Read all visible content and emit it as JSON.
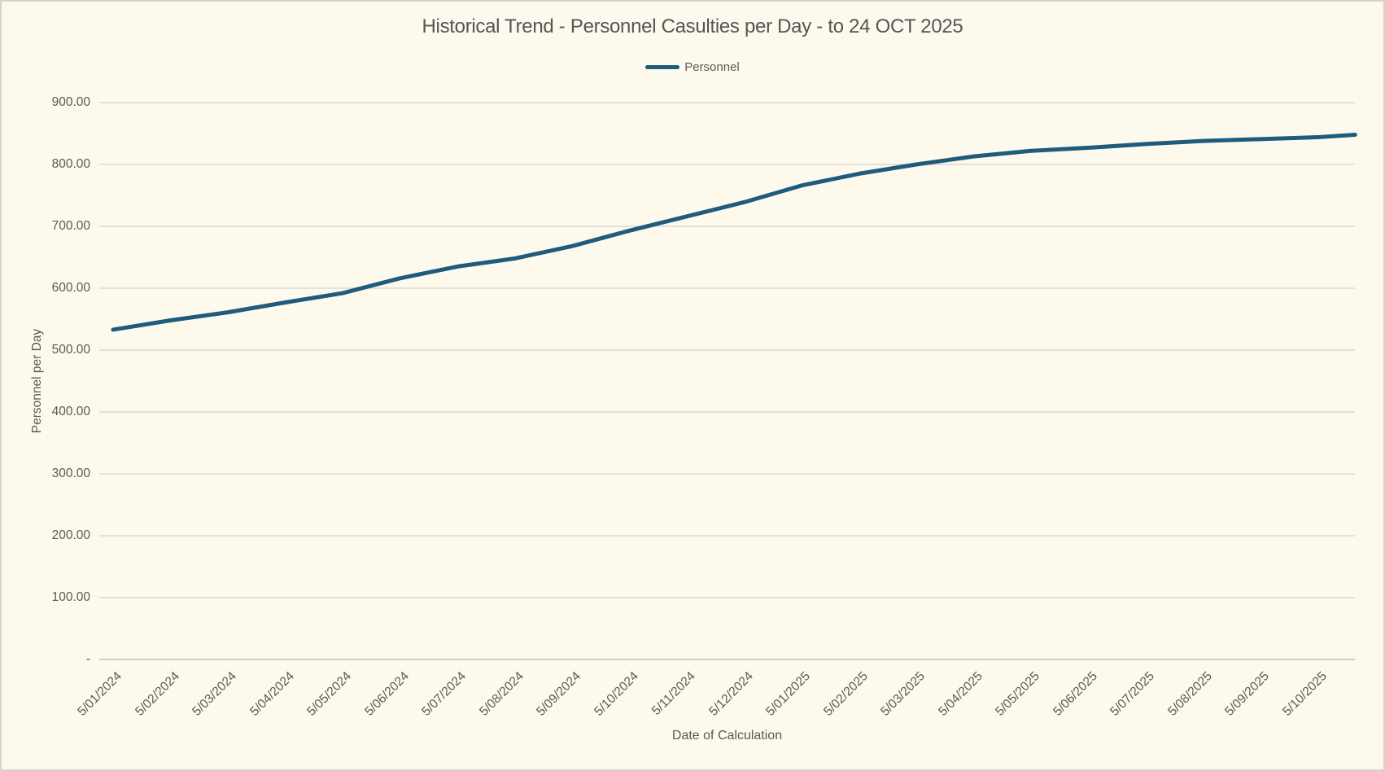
{
  "window": {
    "background": "#FDF9EC",
    "border_color": "#D6D3CB"
  },
  "chart_data": {
    "type": "line",
    "title": "Historical Trend - Personnel Casulties per Day - to 24 OCT 2025",
    "xlabel": "Date of Calculation",
    "ylabel": "Personnel per Day",
    "ylim": [
      0,
      900
    ],
    "ytick_step": 100,
    "ytick_labels": [
      "-",
      "100.00",
      "200.00",
      "300.00",
      "400.00",
      "500.00",
      "600.00",
      "700.00",
      "800.00",
      "900.00"
    ],
    "categories": [
      "5/01/2024",
      "5/02/2024",
      "5/03/2024",
      "5/04/2024",
      "5/05/2024",
      "5/06/2024",
      "5/07/2024",
      "5/08/2024",
      "5/09/2024",
      "5/10/2024",
      "5/11/2024",
      "5/12/2024",
      "5/01/2025",
      "5/02/2025",
      "5/03/2025",
      "5/04/2025",
      "5/05/2025",
      "5/06/2025",
      "5/07/2025",
      "5/08/2025",
      "5/09/2025",
      "5/10/2025"
    ],
    "grid": true,
    "legend_position": "top-center",
    "colors": {
      "gridline": "#D9D9D9",
      "axis_line": "#BFBFBF",
      "text": "#595959",
      "series": "#1F5B7B"
    },
    "series": [
      {
        "name": "Personnel",
        "color": "#1F5B7B",
        "points": [
          [
            0,
            533
          ],
          [
            1,
            548
          ],
          [
            2,
            561
          ],
          [
            3,
            577
          ],
          [
            4,
            592
          ],
          [
            5,
            616
          ],
          [
            6,
            635
          ],
          [
            7,
            648
          ],
          [
            8,
            668
          ],
          [
            9,
            693
          ],
          [
            10,
            716
          ],
          [
            11,
            739
          ],
          [
            12,
            766
          ],
          [
            13,
            785
          ],
          [
            14,
            800
          ],
          [
            15,
            813
          ],
          [
            16,
            822
          ],
          [
            17,
            827
          ],
          [
            18,
            833
          ],
          [
            19,
            838
          ],
          [
            20,
            841
          ],
          [
            21,
            844
          ],
          [
            21.65,
            848
          ]
        ]
      }
    ]
  }
}
